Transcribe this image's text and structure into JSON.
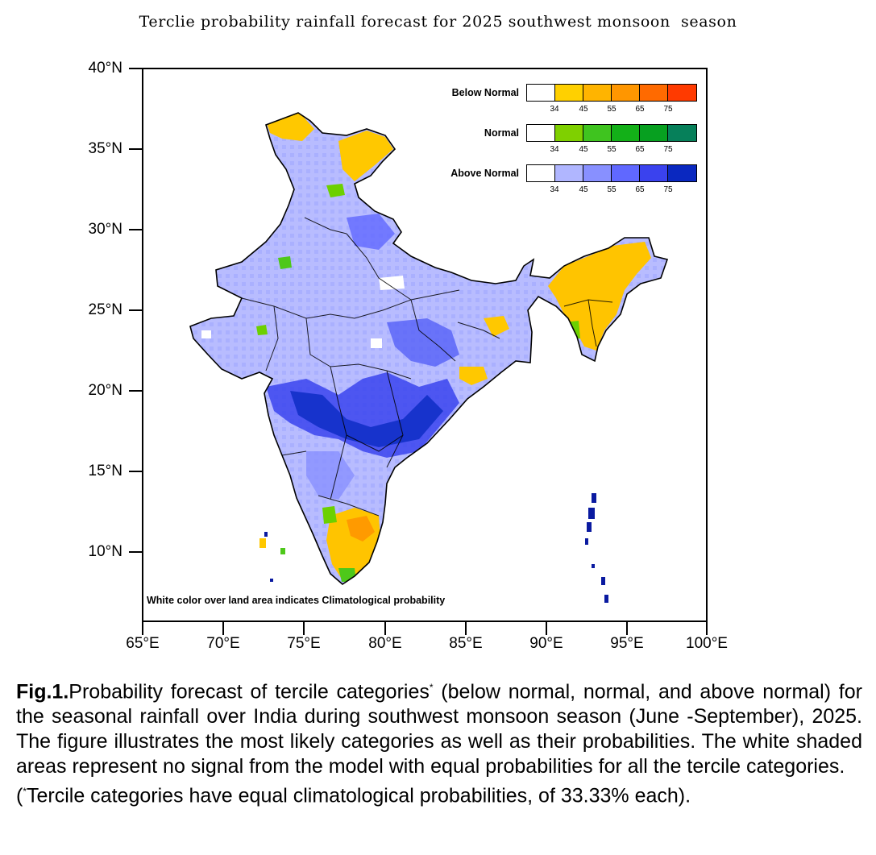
{
  "title": "Terclie probability rainfall forecast for 2025 southwest monsoon  season",
  "legend": {
    "rows": [
      {
        "label": "Below Normal",
        "colors": [
          "#ffffff",
          "#ffd000",
          "#ffb400",
          "#ff9600",
          "#ff6a00",
          "#ff3a00"
        ],
        "ticks": [
          "34",
          "45",
          "55",
          "65",
          "75"
        ]
      },
      {
        "label": "Normal",
        "colors": [
          "#ffffff",
          "#7fd000",
          "#3fc41f",
          "#13b018",
          "#07a020",
          "#06805a"
        ],
        "ticks": [
          "34",
          "45",
          "55",
          "65",
          "75"
        ]
      },
      {
        "label": "Above Normal",
        "colors": [
          "#ffffff",
          "#b0b6ff",
          "#8890ff",
          "#6068ff",
          "#3a42ee",
          "#0a28c0"
        ],
        "ticks": [
          "34",
          "45",
          "55",
          "65",
          "75"
        ]
      }
    ]
  },
  "axes": {
    "y_labels": [
      "40°N",
      "35°N",
      "30°N",
      "25°N",
      "20°N",
      "15°N",
      "10°N"
    ],
    "x_labels": [
      "65°E",
      "70°E",
      "75°E",
      "80°E",
      "85°E",
      "90°E",
      "95°E",
      "100°E"
    ]
  },
  "note": "White color over land area indicates Climatological probability",
  "caption": {
    "fig_label": "Fig.1.",
    "text1": "Probability forecast of tercile categories",
    "sup": "*",
    "text2": " (below normal, normal, and above normal) for the seasonal rainfall over India during southwest monsoon season (June -September), 2025.  The figure illustrates the most likely categories as well as their probabilities.  The white shaded areas represent no signal from the model with equal probabilities for all the tercile categories.",
    "note_open": "(",
    "note_sup": "*",
    "note_text": "Tercile categories have equal climatological probabilities, of 33.33% each)."
  }
}
